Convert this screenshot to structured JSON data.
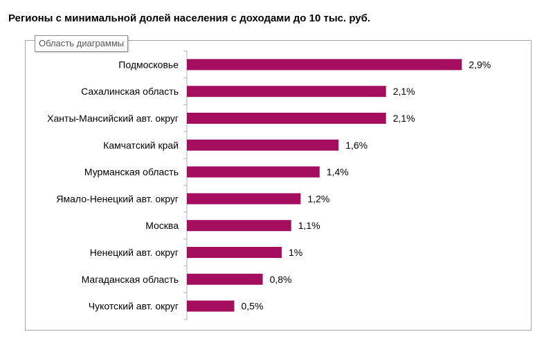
{
  "tooltip": "Область диаграммы",
  "chart_data": {
    "type": "bar",
    "orientation": "horizontal",
    "title": "Регионы с минимальной долей населения с доходами до 10 тыс. руб.",
    "categories": [
      "Подмосковье",
      "Сахалинская область",
      "Ханты-Мансийский авт. округ",
      "Камчатский край",
      "Мурманская область",
      "Ямало-Ненецкий авт. округ",
      "Москва",
      "Ненецкий авт. округ",
      "Магаданская область",
      "Чукотский авт. округ"
    ],
    "values": [
      2.9,
      2.1,
      2.1,
      1.6,
      1.4,
      1.2,
      1.1,
      1.0,
      0.8,
      0.5
    ],
    "data_labels": [
      "2,9%",
      "2,1%",
      "2,1%",
      "1,6%",
      "1,4%",
      "1,2%",
      "1,1%",
      "1%",
      "0,8%",
      "0,5%"
    ],
    "xlim": [
      0,
      3.2
    ],
    "grid": false,
    "legend": "none",
    "bar_color": "#a50e5e"
  }
}
